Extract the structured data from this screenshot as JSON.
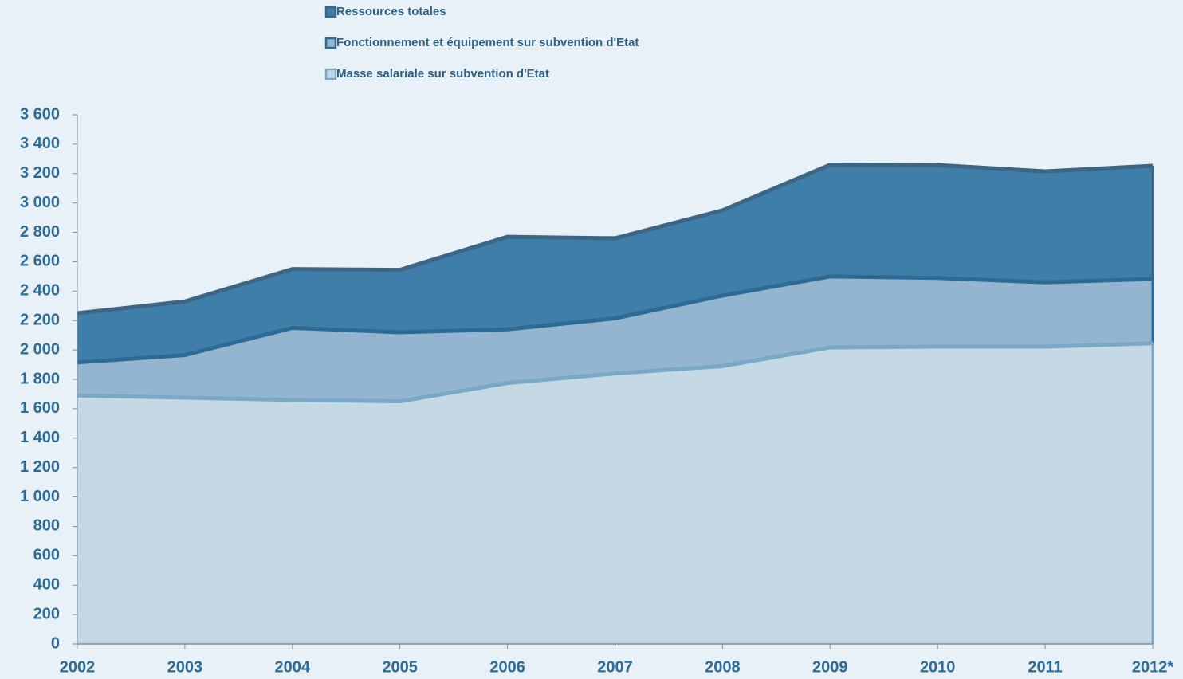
{
  "chart_data": {
    "type": "area",
    "categories": [
      "2002",
      "2003",
      "2004",
      "2005",
      "2006",
      "2007",
      "2008",
      "2009",
      "2010",
      "2011",
      "2012*"
    ],
    "series": [
      {
        "name": "Ressources totales",
        "color": "#3f7ea8",
        "line_color": "#3d6584",
        "values": [
          2250,
          2330,
          2550,
          2545,
          2770,
          2760,
          2950,
          3260,
          3258,
          3215,
          3253
        ]
      },
      {
        "name": "Fonctionnement et équipement sur subvention d'Etat",
        "color": "#93b5cf",
        "line_color": "#2d6a94",
        "values": [
          1915,
          1965,
          2150,
          2120,
          2140,
          2215,
          2370,
          2500,
          2490,
          2460,
          2483
        ]
      },
      {
        "name": "Masse salariale sur subvention d'Etat",
        "color": "#c5d9e5",
        "line_color": "#7aa8c7",
        "values": [
          1690,
          1675,
          1660,
          1650,
          1775,
          1840,
          1890,
          2017,
          2022,
          2022,
          2045
        ]
      }
    ],
    "ylim": [
      0,
      3600
    ],
    "yticks": [
      0,
      200,
      400,
      600,
      800,
      {
        "value": 1000,
        "label": "1 000"
      },
      {
        "value": 1200,
        "label": "1 200"
      },
      {
        "value": 1400,
        "label": "1 400"
      },
      {
        "value": 1600,
        "label": "1 600"
      },
      {
        "value": 1800,
        "label": "1 800"
      },
      {
        "value": 2000,
        "label": "2 000"
      },
      {
        "value": 2200,
        "label": "2 200"
      },
      {
        "value": 2400,
        "label": "2 400"
      },
      {
        "value": 2600,
        "label": "2 600"
      },
      {
        "value": 2800,
        "label": "2 800"
      },
      {
        "value": 3000,
        "label": "3 000"
      },
      {
        "value": 3200,
        "label": "3 200"
      },
      {
        "value": 3400,
        "label": "3 400"
      },
      {
        "value": 3600,
        "label": "3 600"
      }
    ],
    "grid": false
  }
}
